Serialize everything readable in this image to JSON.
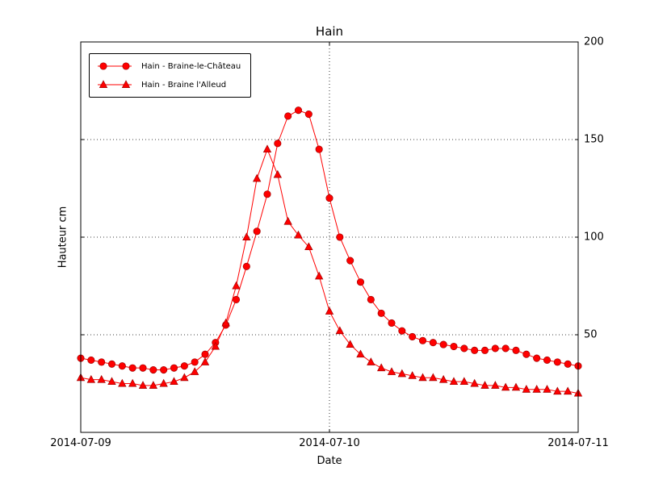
{
  "chart_data": {
    "type": "line",
    "title": "Hain",
    "xlabel": "Date",
    "ylabel": "Hauteur cm",
    "x_tick_labels": [
      "2014-07-09",
      "2014-07-10",
      "2014-07-11"
    ],
    "y_tick_labels": [
      "200",
      "150",
      "100",
      "50"
    ],
    "ylim": [
      0,
      200
    ],
    "x_range_hours": 48,
    "x_grid_hours": [
      0,
      24,
      48
    ],
    "y_grid_values": [
      50,
      100,
      150,
      200
    ],
    "grid": "dotted",
    "legend_position": "upper left",
    "line_color": "#ff0000",
    "marker_edge_color": "#a00000",
    "series": [
      {
        "name": "Hain - Braine-le-Château",
        "marker": "circle",
        "color": "#ff0000",
        "edge_color": "#a00000",
        "x_start": "2014-07-09 00:00",
        "interval_hours": 1,
        "values": [
          38,
          37,
          36,
          35,
          34,
          33,
          33,
          32,
          32,
          33,
          34,
          36,
          40,
          46,
          55,
          68,
          85,
          103,
          122,
          148,
          162,
          165,
          163,
          145,
          120,
          100,
          88,
          77,
          68,
          61,
          56,
          52,
          49,
          47,
          46,
          45,
          44,
          43,
          42,
          42,
          43,
          43,
          42,
          40,
          38,
          37,
          36,
          35,
          34
        ]
      },
      {
        "name": "Hain - Braine l'Alleud",
        "marker": "triangle",
        "color": "#ff0000",
        "edge_color": "#a00000",
        "x_start": "2014-07-09 00:00",
        "interval_hours": 1,
        "values": [
          28,
          27,
          27,
          26,
          25,
          25,
          24,
          24,
          25,
          26,
          28,
          31,
          36,
          44,
          56,
          75,
          100,
          130,
          145,
          132,
          108,
          101,
          95,
          80,
          62,
          52,
          45,
          40,
          36,
          33,
          31,
          30,
          29,
          28,
          28,
          27,
          26,
          26,
          25,
          24,
          24,
          23,
          23,
          22,
          22,
          22,
          21,
          21,
          20
        ]
      }
    ]
  }
}
